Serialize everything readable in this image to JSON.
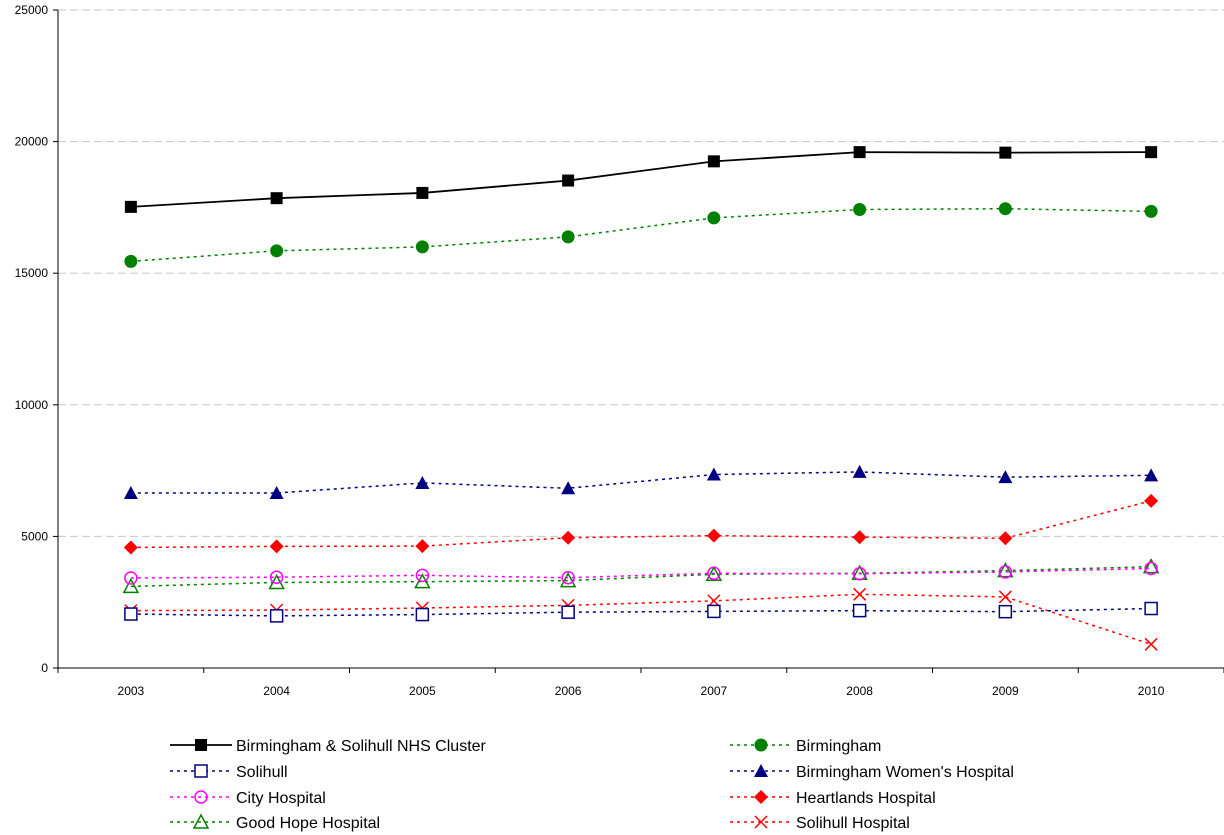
{
  "chart_data": {
    "type": "line",
    "title": "",
    "xlabel": "",
    "ylabel": "",
    "ylim": [
      0,
      25000
    ],
    "yticks": [
      0,
      5000,
      10000,
      15000,
      20000,
      25000
    ],
    "categories": [
      "2003",
      "2004",
      "2005",
      "2006",
      "2007",
      "2008",
      "2009",
      "2010"
    ],
    "grid": "horizontal dashed",
    "legend_position": "bottom",
    "series": [
      {
        "name": "Birmingham & Solihull NHS Cluster",
        "color": "#000000",
        "marker": "square-filled",
        "dash": "solid",
        "values": [
          17520,
          17850,
          18050,
          18520,
          19250,
          19600,
          19580,
          19600
        ]
      },
      {
        "name": "Birmingham",
        "color": "#008000",
        "marker": "circle-filled",
        "dash": "dotted",
        "values": [
          15450,
          15850,
          16000,
          16380,
          17100,
          17420,
          17450,
          17350
        ]
      },
      {
        "name": "Solihull",
        "color": "#000080",
        "marker": "square-open",
        "dash": "dotted",
        "values": [
          2050,
          1980,
          2030,
          2120,
          2150,
          2180,
          2140,
          2260
        ]
      },
      {
        "name": "Birmingham Women's Hospital",
        "color": "#000080",
        "marker": "triangle-filled",
        "dash": "dotted",
        "values": [
          6650,
          6650,
          7030,
          6830,
          7350,
          7450,
          7250,
          7320
        ]
      },
      {
        "name": "City Hospital",
        "color": "#FF00FF",
        "marker": "circle-open",
        "dash": "dotted",
        "values": [
          3420,
          3450,
          3520,
          3430,
          3600,
          3580,
          3650,
          3780
        ]
      },
      {
        "name": "Heartlands Hospital",
        "color": "#FF0000",
        "marker": "diamond-filled",
        "dash": "dotted",
        "values": [
          4580,
          4620,
          4630,
          4950,
          5030,
          4970,
          4930,
          6350
        ]
      },
      {
        "name": "Good Hope Hospital",
        "color": "#008000",
        "marker": "triangle-open",
        "dash": "dotted",
        "values": [
          3100,
          3250,
          3280,
          3320,
          3560,
          3600,
          3700,
          3850
        ]
      },
      {
        "name": "Solihull Hospital",
        "color": "#FF0000",
        "marker": "x",
        "dash": "dotted",
        "values": [
          2180,
          2200,
          2280,
          2380,
          2550,
          2800,
          2700,
          900
        ]
      }
    ]
  }
}
